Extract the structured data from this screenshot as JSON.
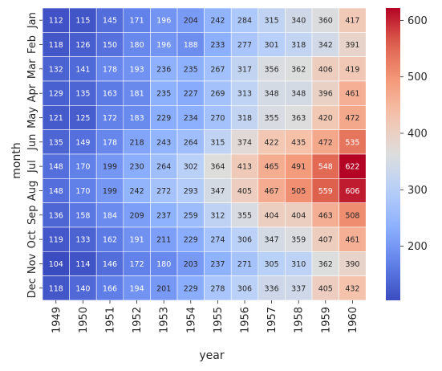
{
  "chart_data": {
    "type": "heatmap",
    "title": "",
    "xlabel": "year",
    "ylabel": "month",
    "x": [
      "1949",
      "1950",
      "1951",
      "1952",
      "1953",
      "1954",
      "1955",
      "1956",
      "1957",
      "1958",
      "1959",
      "1960"
    ],
    "y": [
      "Jan",
      "Feb",
      "Mar",
      "Apr",
      "May",
      "Jun",
      "Jul",
      "Aug",
      "Sep",
      "Oct",
      "Nov",
      "Dec"
    ],
    "values": [
      [
        112,
        115,
        145,
        171,
        196,
        204,
        242,
        284,
        315,
        340,
        360,
        417
      ],
      [
        118,
        126,
        150,
        180,
        196,
        188,
        233,
        277,
        301,
        318,
        342,
        391
      ],
      [
        132,
        141,
        178,
        193,
        236,
        235,
        267,
        317,
        356,
        362,
        406,
        419
      ],
      [
        129,
        135,
        163,
        181,
        235,
        227,
        269,
        313,
        348,
        348,
        396,
        461
      ],
      [
        121,
        125,
        172,
        183,
        229,
        234,
        270,
        318,
        355,
        363,
        420,
        472
      ],
      [
        135,
        149,
        178,
        218,
        243,
        264,
        315,
        374,
        422,
        435,
        472,
        535
      ],
      [
        148,
        170,
        199,
        230,
        264,
        302,
        364,
        413,
        465,
        491,
        548,
        622
      ],
      [
        148,
        170,
        199,
        242,
        272,
        293,
        347,
        405,
        467,
        505,
        559,
        606
      ],
      [
        136,
        158,
        184,
        209,
        237,
        259,
        312,
        355,
        404,
        404,
        463,
        508
      ],
      [
        119,
        133,
        162,
        191,
        211,
        229,
        274,
        306,
        347,
        359,
        407,
        461
      ],
      [
        104,
        114,
        146,
        172,
        180,
        203,
        237,
        271,
        305,
        310,
        362,
        390
      ],
      [
        118,
        140,
        166,
        194,
        201,
        229,
        278,
        306,
        336,
        337,
        405,
        432
      ]
    ],
    "colormap": "coolwarm",
    "vmin": 104,
    "vmax": 622,
    "annotations": true,
    "colorbar_ticks": [
      200,
      300,
      400,
      500,
      600
    ]
  }
}
